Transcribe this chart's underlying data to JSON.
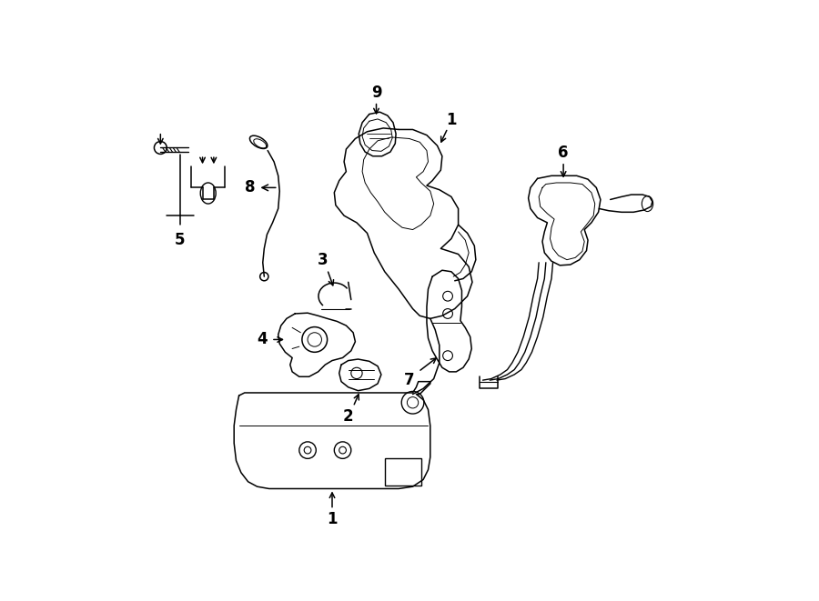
{
  "background_color": "#ffffff",
  "line_color": "#000000",
  "figsize": [
    9.0,
    6.61
  ],
  "dpi": 100,
  "lw": 1.1,
  "fontsize": 11
}
